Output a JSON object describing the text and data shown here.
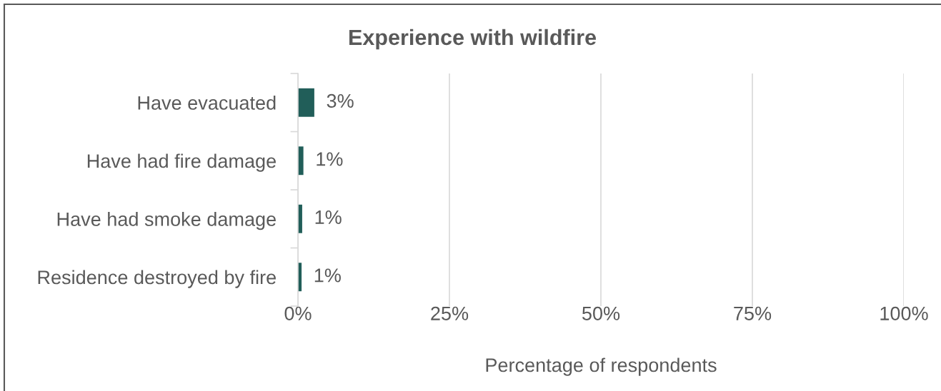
{
  "chart_data": {
    "type": "bar",
    "orientation": "horizontal",
    "title": "Experience with wildfire",
    "xlabel": "Percentage of respondents",
    "categories": [
      "Have evacuated",
      "Have had fire damage",
      "Have had smoke damage",
      "Residence destroyed by fire"
    ],
    "values": [
      2.7,
      0.9,
      0.7,
      0.6
    ],
    "color": "#215e59",
    "value_labels": [
      "3%",
      "1%",
      "1%",
      "1%"
    ],
    "xlim": [
      0,
      100
    ],
    "xticks": [
      {
        "value": 0,
        "label": "0%"
      },
      {
        "value": 25,
        "label": "25%"
      },
      {
        "value": 50,
        "label": "50%"
      },
      {
        "value": 75,
        "label": "75%"
      },
      {
        "value": 100,
        "label": "100%"
      }
    ],
    "grid": "x"
  }
}
